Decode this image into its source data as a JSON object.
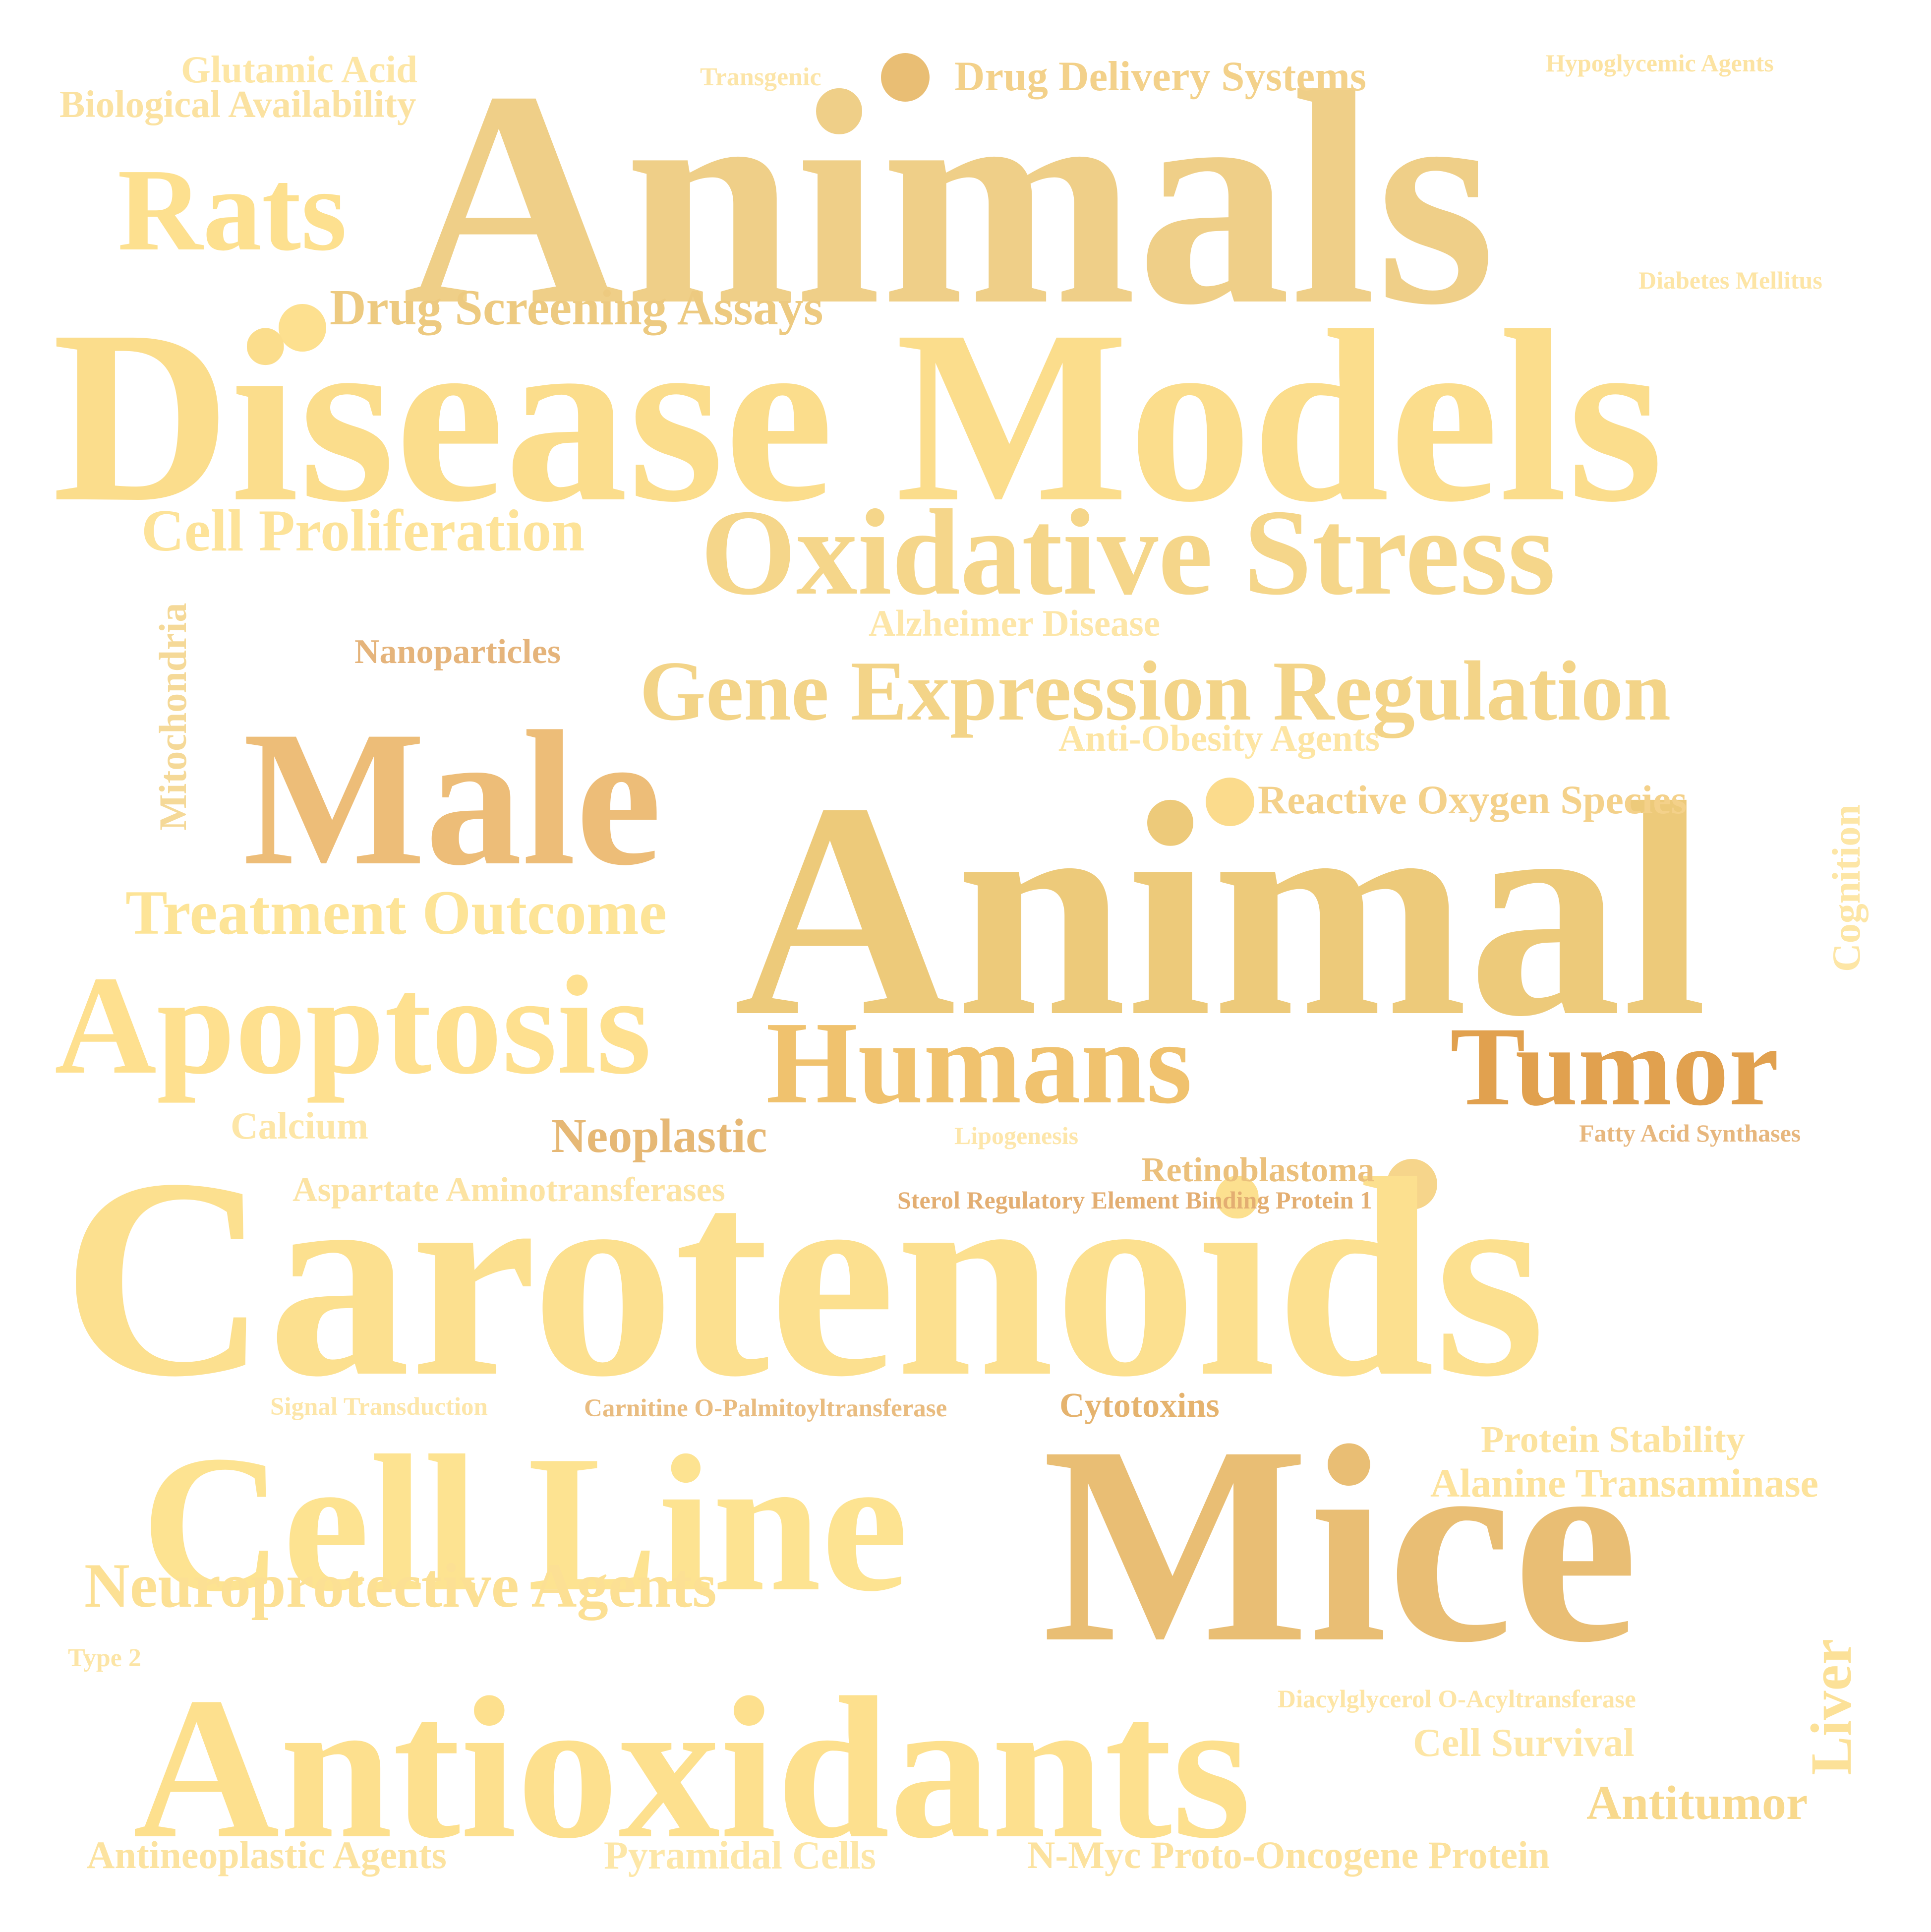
{
  "words": [
    {
      "text": "Animals",
      "color": "#EFCF88"
    },
    {
      "text": "Disease Models",
      "color": "#FBDD8C"
    },
    {
      "text": "Animal",
      "color": "#EDCA7A"
    },
    {
      "text": "Carotenoids",
      "color": "#FCE08F"
    },
    {
      "text": "Mice",
      "color": "#E9BE74"
    },
    {
      "text": "Antioxidants",
      "color": "#FDE08E"
    },
    {
      "text": "Cell Line",
      "color": "#FDE391"
    },
    {
      "text": "Male",
      "color": "#EDBD78"
    },
    {
      "text": "Oxidative Stress",
      "color": "#F5D68A"
    },
    {
      "text": "Apoptosis",
      "color": "#FEE08F"
    },
    {
      "text": "Humans",
      "color": "#F0C26E"
    },
    {
      "text": "Tumor",
      "color": "#E1A14F"
    },
    {
      "text": "Rats",
      "color": "#FDE08F"
    },
    {
      "text": "Gene Expression Regulation",
      "color": "#F3D488"
    },
    {
      "text": "Treatment Outcome",
      "color": "#FDE497"
    },
    {
      "text": "Neuroprotective Agents",
      "color": "#FCE094"
    },
    {
      "text": "Cell Proliferation",
      "color": "#FDE399"
    },
    {
      "text": "Drug Screening Assays",
      "color": "#EDCA80"
    },
    {
      "text": "Neoplastic",
      "color": "#E6B875"
    },
    {
      "text": "Drug Delivery Systems",
      "color": "#F3D18A"
    },
    {
      "text": "Reactive Oxygen Species",
      "color": "#F4D18A"
    },
    {
      "text": "Antitumor",
      "color": "#F8D98D"
    },
    {
      "text": "Liver",
      "color": "#FCE198"
    },
    {
      "text": "Alanine Transaminase",
      "color": "#FDE39C"
    },
    {
      "text": "Protein Stability",
      "color": "#FCE39F"
    },
    {
      "text": "Glutamic Acid",
      "color": "#FDE6A5"
    },
    {
      "text": "Biological Availability",
      "color": "#FBE2A1"
    },
    {
      "text": "Alzheimer Disease",
      "color": "#FDE6A8"
    },
    {
      "text": "Anti-Obesity Agents",
      "color": "#FDE5A3"
    },
    {
      "text": "Nanoparticles",
      "color": "#E5B47B"
    },
    {
      "text": "Mitochondria",
      "color": "#F5D998"
    },
    {
      "text": "Cognition",
      "color": "#FDE6A6"
    },
    {
      "text": "Calcium",
      "color": "#FDE6A7"
    },
    {
      "text": "Aspartate Aminotransferases",
      "color": "#FCE3A3"
    },
    {
      "text": "Retinoblastoma",
      "color": "#EBC07C"
    },
    {
      "text": "Cytotoxins",
      "color": "#E5B36E"
    },
    {
      "text": "Antineoplastic Agents",
      "color": "#FCE3A0"
    },
    {
      "text": "Pyramidal Cells",
      "color": "#FDE7A8"
    },
    {
      "text": "N-Myc Proto-Oncogene Protein",
      "color": "#FCE29E"
    },
    {
      "text": "Cell Survival",
      "color": "#FDE6A6"
    },
    {
      "text": "Transgenic",
      "color": "#FCE5A8"
    },
    {
      "text": "Hypoglycemic Agents",
      "color": "#FCE3A2"
    },
    {
      "text": "Diabetes Mellitus",
      "color": "#FDE5A6"
    },
    {
      "text": "Lipogenesis",
      "color": "#FDE6AA"
    },
    {
      "text": "Fatty Acid Synthases",
      "color": "#E7B77E"
    },
    {
      "text": "Sterol Regulatory Element Binding Protein 1",
      "color": "#E3AE72"
    },
    {
      "text": "Signal Transduction",
      "color": "#FDE6A9"
    },
    {
      "text": "Carnitine O-Palmitoyltransferase",
      "color": "#E9BC80"
    },
    {
      "text": "Type 2",
      "color": "#FCE5A6"
    },
    {
      "text": "Diacylglycerol O-Acyltransferase",
      "color": "#FDE5A6"
    }
  ],
  "dots": [
    {
      "color": "#E9BE74"
    },
    {
      "color": "#FDE08F"
    },
    {
      "color": "#FBDB8C"
    },
    {
      "color": "#F6D58B"
    }
  ]
}
